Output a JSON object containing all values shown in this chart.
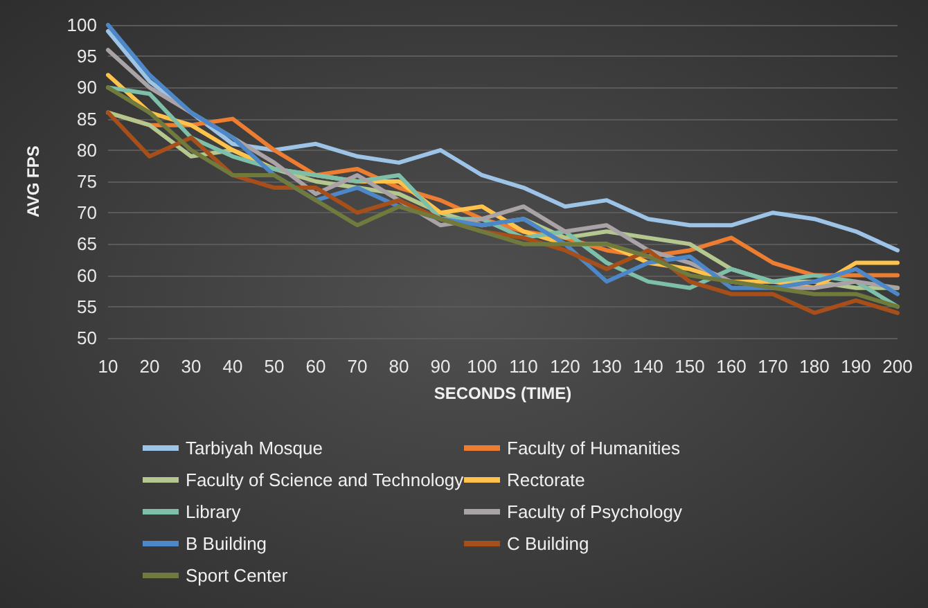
{
  "chart_data": {
    "type": "line",
    "xlabel": "SECONDS (TIME)",
    "ylabel": "AVG FPS",
    "categories": [
      "10",
      "20",
      "30",
      "40",
      "50",
      "60",
      "70",
      "80",
      "90",
      "100",
      "110",
      "120",
      "130",
      "140",
      "150",
      "160",
      "170",
      "180",
      "190",
      "200"
    ],
    "series": [
      {
        "name": "Tarbiyah Mosque",
        "color": "#9dc3e6",
        "values": [
          99,
          91,
          86,
          81,
          80,
          81,
          79,
          78,
          80,
          76,
          74,
          71,
          72,
          69,
          68,
          68,
          70,
          69,
          67,
          64
        ]
      },
      {
        "name": "Faculty of Humanities",
        "color": "#ed7d31",
        "values": [
          86,
          84,
          84,
          85,
          80,
          76,
          77,
          74,
          72,
          69,
          67,
          66,
          64,
          63,
          64,
          66,
          62,
          60,
          60,
          60
        ]
      },
      {
        "name": "Faculty of Science and Technology",
        "color": "#b4c78e",
        "values": [
          86,
          84,
          79,
          80,
          77,
          75,
          74,
          73,
          70,
          68,
          69,
          66,
          67,
          66,
          65,
          61,
          59,
          59,
          58,
          58
        ]
      },
      {
        "name": "Rectorate",
        "color": "#ffc24a",
        "values": [
          92,
          86,
          84,
          80,
          77,
          76,
          75,
          75,
          70,
          71,
          67,
          65,
          65,
          62,
          61,
          59,
          59,
          58,
          62,
          62
        ]
      },
      {
        "name": "Library",
        "color": "#7dbfa8",
        "values": [
          90,
          89,
          82,
          79,
          77,
          76,
          75,
          76,
          69,
          69,
          66,
          67,
          62,
          59,
          58,
          61,
          59,
          60,
          59,
          55
        ]
      },
      {
        "name": "Faculty of Psychology",
        "color": "#a9a2a6",
        "values": [
          96,
          90,
          86,
          82,
          78,
          73,
          76,
          72,
          68,
          69,
          71,
          67,
          68,
          64,
          62,
          59,
          58,
          58,
          59,
          58
        ]
      },
      {
        "name": "B Building",
        "color": "#4d87c7",
        "values": [
          100,
          92,
          86,
          82,
          76,
          72,
          74,
          71,
          69,
          68,
          69,
          65,
          59,
          62,
          63,
          58,
          58,
          59,
          61,
          57
        ]
      },
      {
        "name": "C Building",
        "color": "#a64f1a",
        "values": [
          86,
          79,
          82,
          76,
          74,
          74,
          70,
          72,
          69,
          67,
          66,
          64,
          61,
          64,
          59,
          57,
          57,
          54,
          56,
          54
        ]
      },
      {
        "name": "Sport Center",
        "color": "#6f7a3c",
        "values": [
          90,
          86,
          80,
          76,
          76,
          72,
          68,
          71,
          69,
          67,
          65,
          65,
          65,
          63,
          60,
          59,
          58,
          57,
          57,
          55
        ]
      }
    ],
    "ylim": [
      50,
      100
    ],
    "yticks": [
      50,
      55,
      60,
      65,
      70,
      75,
      80,
      85,
      90,
      95,
      100
    ],
    "grid": "y",
    "legend": "bottom",
    "marker": "none",
    "line_style": "solid"
  }
}
